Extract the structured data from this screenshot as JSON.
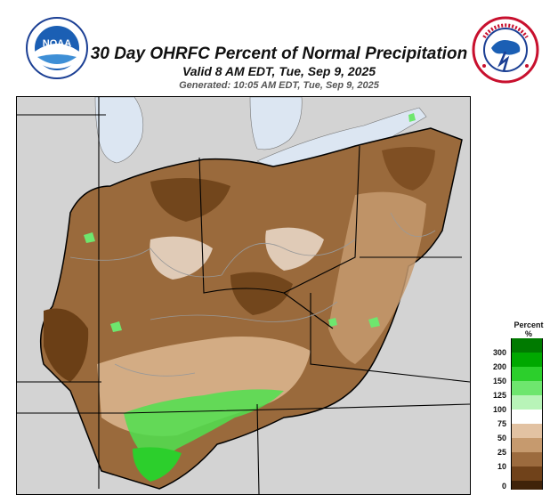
{
  "header": {
    "title": "30 Day OHRFC Percent of Normal Precipitation",
    "valid": "Valid 8 AM EDT, Tue, Sep 9, 2025",
    "generated": "Generated: 10:05 AM EDT, Tue, Sep 9, 2025"
  },
  "logos": {
    "left": {
      "icon": "noaa-logo",
      "text": "NOAA"
    },
    "right": {
      "icon": "nws-logo",
      "text": "NATIONAL WEATHER SERVICE"
    }
  },
  "legend": {
    "title_line1": "Percent",
    "title_line2": "%",
    "ticks": [
      "300",
      "200",
      "150",
      "125",
      "100",
      "75",
      "50",
      "25",
      "10",
      "0"
    ],
    "colors": [
      "#007a00",
      "#00a800",
      "#2ccf2c",
      "#6ee66e",
      "#b8f4b8",
      "#ffffff",
      "#e2c2a2",
      "#c69a6e",
      "#9c6b3e",
      "#70421a",
      "#40230a"
    ]
  },
  "map": {
    "colors": {
      "background": "#d3d3d3",
      "lake": "#dce6f2",
      "dry_dark": "#6b3f16",
      "dry_mid": "#9a6a3c",
      "dry_light": "#c69a6e",
      "near_normal": "#f1e4d6",
      "wet": "#4fe04f",
      "boundary": "#000000"
    }
  }
}
